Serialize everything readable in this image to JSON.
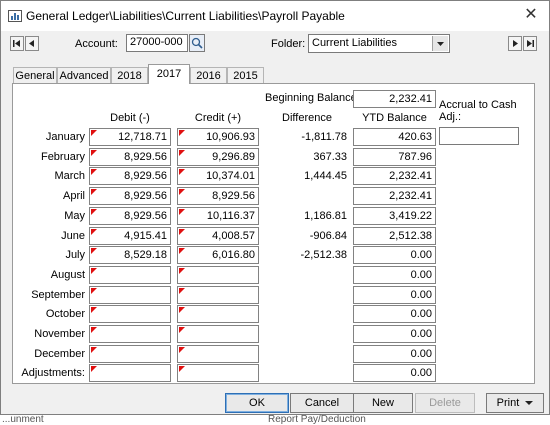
{
  "window": {
    "title": "General Ledger\\Liabilities\\Current Liabilities\\Payroll Payable",
    "close_glyph": "✕"
  },
  "account": {
    "label": "Account:",
    "value": "27000-000"
  },
  "folder": {
    "label": "Folder:",
    "value": "Current Liabilities"
  },
  "tabs": [
    "General",
    "Advanced",
    "2018",
    "2017",
    "2016",
    "2015"
  ],
  "active_tab": "2017",
  "columns": {
    "debit": "Debit (-)",
    "credit": "Credit (+)",
    "difference": "Difference",
    "ytd": "YTD Balance"
  },
  "beginning_balance": {
    "label": "Beginning Balance:",
    "value": "2,232.41"
  },
  "accrual": {
    "label": "Accrual to Cash Adj.:",
    "value": ""
  },
  "rows": [
    {
      "month": "January",
      "debit": "12,718.71",
      "credit": "10,906.93",
      "difference": "-1,811.78",
      "ytd": "420.63",
      "debit_flag": true,
      "credit_flag": true
    },
    {
      "month": "February",
      "debit": "8,929.56",
      "credit": "9,296.89",
      "difference": "367.33",
      "ytd": "787.96",
      "debit_flag": true,
      "credit_flag": true
    },
    {
      "month": "March",
      "debit": "8,929.56",
      "credit": "10,374.01",
      "difference": "1,444.45",
      "ytd": "2,232.41",
      "debit_flag": true,
      "credit_flag": true
    },
    {
      "month": "April",
      "debit": "8,929.56",
      "credit": "8,929.56",
      "difference": "",
      "ytd": "2,232.41",
      "debit_flag": true,
      "credit_flag": true
    },
    {
      "month": "May",
      "debit": "8,929.56",
      "credit": "10,116.37",
      "difference": "1,186.81",
      "ytd": "3,419.22",
      "debit_flag": true,
      "credit_flag": true
    },
    {
      "month": "June",
      "debit": "4,915.41",
      "credit": "4,008.57",
      "difference": "-906.84",
      "ytd": "2,512.38",
      "debit_flag": true,
      "credit_flag": true
    },
    {
      "month": "July",
      "debit": "8,529.18",
      "credit": "6,016.80",
      "difference": "-2,512.38",
      "ytd": "0.00",
      "debit_flag": true,
      "credit_flag": true
    },
    {
      "month": "August",
      "debit": "",
      "credit": "",
      "difference": "",
      "ytd": "0.00",
      "debit_flag": true,
      "credit_flag": true
    },
    {
      "month": "September",
      "debit": "",
      "credit": "",
      "difference": "",
      "ytd": "0.00",
      "debit_flag": true,
      "credit_flag": true
    },
    {
      "month": "October",
      "debit": "",
      "credit": "",
      "difference": "",
      "ytd": "0.00",
      "debit_flag": true,
      "credit_flag": true
    },
    {
      "month": "November",
      "debit": "",
      "credit": "",
      "difference": "",
      "ytd": "0.00",
      "debit_flag": true,
      "credit_flag": true
    },
    {
      "month": "December",
      "debit": "",
      "credit": "",
      "difference": "",
      "ytd": "0.00",
      "debit_flag": true,
      "credit_flag": true
    },
    {
      "month": "Adjustments:",
      "debit": "",
      "credit": "",
      "difference": "",
      "ytd": "0.00",
      "debit_flag": true,
      "credit_flag": true
    }
  ],
  "buttons": {
    "ok": "OK",
    "cancel": "Cancel",
    "new": "New",
    "delete": "Delete",
    "print": "Print"
  },
  "status": {
    "left": "...unment",
    "right": "Report Pay/Deduction"
  },
  "colors": {
    "flag": "#e01010",
    "ok_border": "#2e6fb5"
  }
}
